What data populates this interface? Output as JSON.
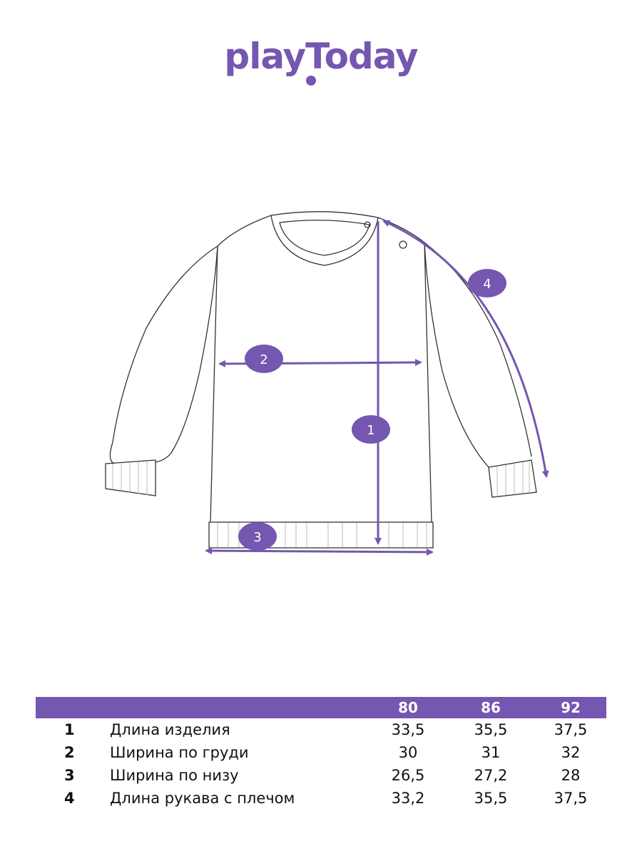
{
  "brand": {
    "logo_text": "playToday",
    "color": "#7556b0"
  },
  "markers": [
    "1",
    "2",
    "3",
    "4"
  ],
  "size_table": {
    "sizes": [
      "80",
      "86",
      "92"
    ],
    "rows": [
      {
        "num": "1",
        "label": "Длина изделия",
        "values": [
          "33,5",
          "35,5",
          "37,5"
        ]
      },
      {
        "num": "2",
        "label": "Ширина по груди",
        "values": [
          "30",
          "31",
          "32"
        ]
      },
      {
        "num": "3",
        "label": "Ширина по низу",
        "values": [
          "26,5",
          "27,2",
          "28"
        ]
      },
      {
        "num": "4",
        "label": "Длина рукава с плечом",
        "values": [
          "33,2",
          "35,5",
          "37,5"
        ]
      }
    ]
  }
}
